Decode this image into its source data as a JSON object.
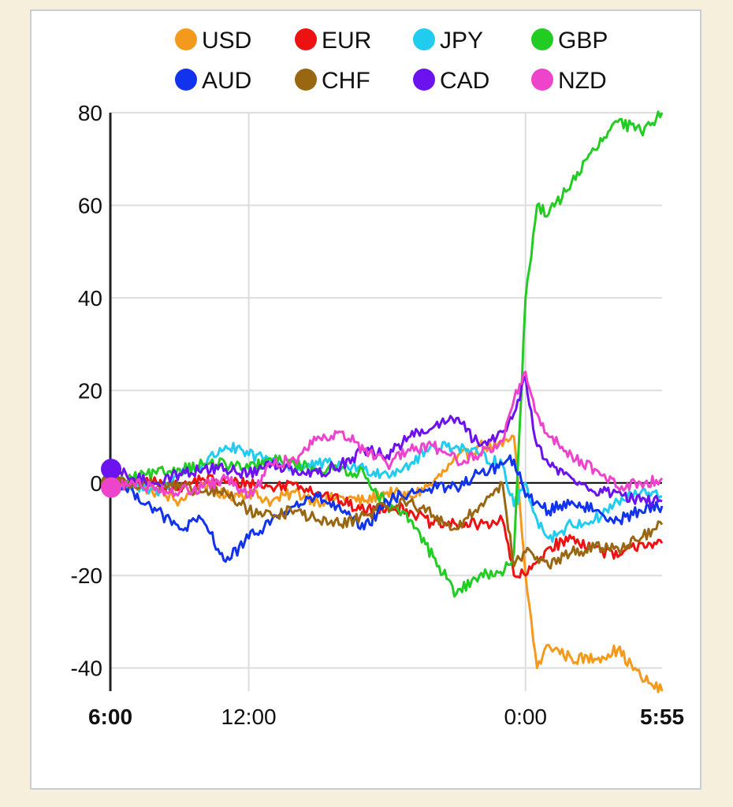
{
  "chart_data": {
    "type": "line",
    "title": "",
    "xlabel": "",
    "ylabel": "",
    "ylim": [
      -45,
      80
    ],
    "yticks": [
      80,
      60,
      40,
      20,
      0,
      -20,
      -40
    ],
    "xtick_labels": [
      {
        "label": "6:00",
        "t": 0,
        "bold": true
      },
      {
        "label": "12:00",
        "t": 6,
        "bold": false
      },
      {
        "label": "0:00",
        "t": 18,
        "bold": false
      },
      {
        "label": "5:55",
        "t": 23.92,
        "bold": true
      }
    ],
    "x_hours": [
      0,
      1,
      2,
      3,
      4,
      5,
      6,
      7,
      8,
      9,
      10,
      11,
      12,
      13,
      14,
      15,
      16,
      17,
      17.5,
      18,
      18.5,
      19,
      20,
      21,
      22,
      23,
      23.92
    ],
    "grid": true,
    "legend_position": "top",
    "series": [
      {
        "name": "USD",
        "color": "#f39a1c",
        "values": [
          0,
          0,
          -2,
          -4,
          0,
          -3,
          -2,
          -4,
          -2,
          -4,
          -3,
          -4,
          -2,
          -3,
          0,
          5,
          8,
          8,
          10,
          -20,
          -40,
          -35,
          -38,
          -38,
          -36,
          -42,
          -45
        ]
      },
      {
        "name": "EUR",
        "color": "#ee1111",
        "values": [
          0,
          0,
          0,
          -1,
          1,
          0,
          0,
          -1,
          0,
          -2,
          -4,
          -6,
          -5,
          -6,
          -9,
          -9,
          -9,
          -8,
          -20,
          -20,
          -17,
          -14,
          -12,
          -14,
          -16,
          -13,
          -13
        ]
      },
      {
        "name": "JPY",
        "color": "#22ccee",
        "values": [
          0,
          -1,
          -2,
          2,
          4,
          8,
          6,
          5,
          3,
          4,
          4,
          3,
          2,
          4,
          8,
          8,
          6,
          4,
          -5,
          0,
          -8,
          -12,
          -9,
          -8,
          -4,
          -2,
          -3
        ]
      },
      {
        "name": "GBP",
        "color": "#22cc22",
        "values": [
          0,
          1,
          2,
          3,
          4,
          4,
          3,
          5,
          4,
          3,
          3,
          2,
          -5,
          -8,
          -16,
          -24,
          -20,
          -20,
          -15,
          40,
          60,
          58,
          65,
          72,
          78,
          76,
          80
        ]
      },
      {
        "name": "AUD",
        "color": "#1133ee",
        "values": [
          0,
          -2,
          -6,
          -10,
          -8,
          -17,
          -12,
          -8,
          -5,
          -3,
          -6,
          -10,
          -4,
          -2,
          -1,
          -1,
          2,
          4,
          5,
          -3,
          -4,
          -6,
          -4,
          -6,
          -8,
          -6,
          -5
        ]
      },
      {
        "name": "CHF",
        "color": "#996611",
        "values": [
          0,
          0,
          0,
          -1,
          -2,
          -2,
          -6,
          -7,
          -6,
          -8,
          -9,
          -7,
          -5,
          -4,
          -7,
          -10,
          -5,
          0,
          -18,
          -15,
          -16,
          -18,
          -15,
          -14,
          -14,
          -12,
          -9
        ]
      },
      {
        "name": "CAD",
        "color": "#6b12ee",
        "values": [
          3,
          1,
          0,
          2,
          3,
          3,
          2,
          4,
          3,
          2,
          4,
          7,
          6,
          10,
          12,
          14,
          8,
          11,
          15,
          23,
          8,
          4,
          1,
          -2,
          -2,
          -4,
          -4
        ]
      },
      {
        "name": "NZD",
        "color": "#ee44cc",
        "values": [
          -1,
          0,
          -1,
          -2,
          -1,
          1,
          -3,
          4,
          5,
          10,
          11,
          7,
          4,
          7,
          8,
          5,
          6,
          9,
          18,
          24,
          15,
          10,
          6,
          3,
          -1,
          0,
          1
        ]
      }
    ]
  }
}
